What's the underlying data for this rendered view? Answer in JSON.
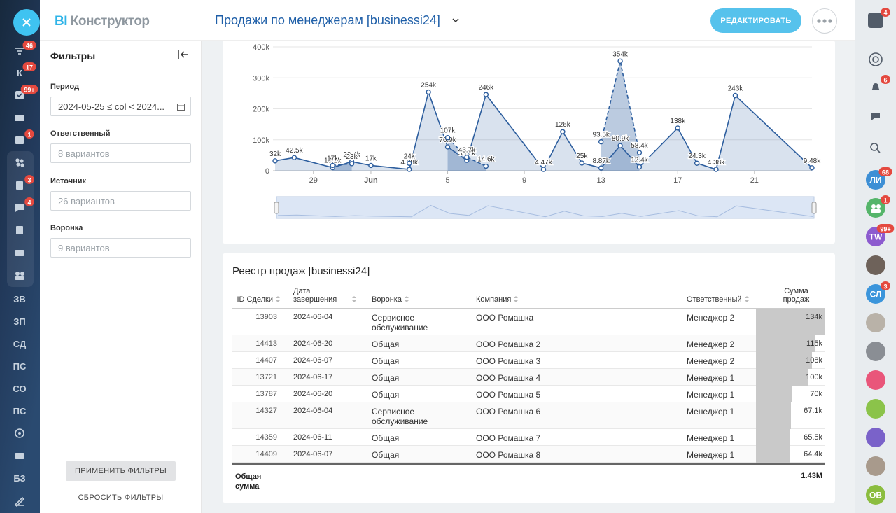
{
  "left_nav": {
    "badges": [
      "46",
      "17",
      "99+",
      "1",
      "3",
      "4"
    ],
    "labels": [
      "К",
      "ЗВ",
      "ЗП",
      "СД",
      "ПС",
      "СО",
      "ПС",
      "БЗ"
    ]
  },
  "header": {
    "brand_bi": "BI",
    "brand_name": "Конструктор",
    "title": "Продажи по менеджерам [businessi24]",
    "edit_button": "РЕДАКТИРОВАТЬ"
  },
  "filters": {
    "title": "Фильтры",
    "fields": [
      {
        "label": "Период",
        "value": "2024-05-25 ≤ col < 2024..."
      },
      {
        "label": "Ответственный",
        "value": "8 вариантов"
      },
      {
        "label": "Источник",
        "value": "26 вариантов"
      },
      {
        "label": "Воронка",
        "value": "9 вариантов"
      }
    ],
    "apply_button": "ПРИМЕНИТЬ ФИЛЬТРЫ",
    "reset_button": "СБРОСИТЬ ФИЛЬТРЫ"
  },
  "chart_data": {
    "type": "area",
    "xlim": [
      "2024-05-27",
      "2024-06-24"
    ],
    "xticks": [
      {
        "value": "2024-05-29",
        "label": "29"
      },
      {
        "value": "2024-06-01",
        "label": "Jun"
      },
      {
        "value": "2024-06-05",
        "label": "5"
      },
      {
        "value": "2024-06-09",
        "label": "9"
      },
      {
        "value": "2024-06-13",
        "label": "13"
      },
      {
        "value": "2024-06-17",
        "label": "17"
      },
      {
        "value": "2024-06-21",
        "label": "21"
      }
    ],
    "ylim": [
      0,
      400000
    ],
    "yticks": [
      {
        "value": 0,
        "label": "0"
      },
      {
        "value": 100000,
        "label": "100k"
      },
      {
        "value": 200000,
        "label": "200k"
      },
      {
        "value": 300000,
        "label": "300k"
      },
      {
        "value": 400000,
        "label": "400k"
      }
    ],
    "grid": true,
    "series": [
      {
        "color": "#2d5e9e",
        "dashed": false,
        "x": [
          "2024-05-27",
          "2024-05-28",
          "2024-05-30",
          "2024-05-31",
          "2024-06-01",
          "2024-06-03",
          "2024-06-04",
          "2024-06-05",
          "2024-06-06",
          "2024-06-07",
          "2024-06-10",
          "2024-06-11",
          "2024-06-12",
          "2024-06-13",
          "2024-06-14",
          "2024-06-15",
          "2024-06-17",
          "2024-06-18",
          "2024-06-19",
          "2024-06-20",
          "2024-06-24"
        ],
        "values": [
          32000,
          42500,
          10200,
          29400,
          17000,
          4380,
          254000,
          76900,
          33700,
          246000,
          4470,
          126000,
          25000,
          8870,
          80900,
          12400,
          138000,
          24300,
          4380,
          243000,
          9480
        ],
        "value_labels": [
          "32k",
          "42.5k",
          "10.2k",
          "29.4k",
          "17k",
          "4.38k",
          "254k",
          "76.9k",
          "33.7k",
          "246k",
          "4.47k",
          "126k",
          "25k",
          "8.87k",
          "80.9k",
          "12.4k",
          "138k",
          "24.3k",
          "4.38k",
          "243k",
          "9.48k"
        ]
      },
      {
        "color": "#2d5e9e",
        "dashed": true,
        "x": [
          "2024-05-30",
          "2024-05-31",
          "2024-06-01",
          "2024-06-03",
          "2024-06-04",
          "2024-06-05",
          "2024-06-06",
          "2024-06-07",
          "2024-06-10",
          "2024-06-13",
          "2024-06-14",
          "2024-06-15"
        ],
        "values": [
          17000,
          23000,
          null,
          24000,
          null,
          107000,
          43700,
          14600,
          null,
          93500,
          354000,
          58400
        ],
        "value_labels": [
          "17k",
          "23k",
          null,
          "24k",
          null,
          "107k",
          "43.7k",
          "14.6k",
          null,
          "93.5k",
          "354k",
          "58.4k"
        ]
      }
    ]
  },
  "table": {
    "title": "Реестр продаж [businessi24]",
    "columns": [
      "ID Сделки",
      "Дата завершения",
      "Воронка",
      "Компания",
      "Ответственный",
      "Сумма продаж"
    ],
    "rows": [
      [
        "13903",
        "2024-06-04",
        "Сервисное обслуживание",
        "ООО Ромашка",
        "Менеджер 2",
        {
          "value": 134000,
          "label": "134k"
        }
      ],
      [
        "14413",
        "2024-06-20",
        "Общая",
        "ООО Ромашка 2",
        "Менеджер 2",
        {
          "value": 115000,
          "label": "115k"
        }
      ],
      [
        "14407",
        "2024-06-07",
        "Общая",
        "ООО Ромашка 3",
        "Менеджер 2",
        {
          "value": 108000,
          "label": "108k"
        }
      ],
      [
        "13721",
        "2024-06-17",
        "Общая",
        "ООО Ромашка 4",
        "Менеджер 1",
        {
          "value": 100000,
          "label": "100k"
        }
      ],
      [
        "13787",
        "2024-06-20",
        "Общая",
        "ООО Ромашка 5",
        "Менеджер 1",
        {
          "value": 70000,
          "label": "70k"
        }
      ],
      [
        "14327",
        "2024-06-04",
        "Сервисное обслуживание",
        "ООО Ромашка 6",
        "Менеджер 1",
        {
          "value": 67100,
          "label": "67.1k"
        }
      ],
      [
        "14359",
        "2024-06-11",
        "Общая",
        "ООО Ромашка 7",
        "Менеджер 1",
        {
          "value": 65500,
          "label": "65.5k"
        }
      ],
      [
        "14409",
        "2024-06-07",
        "Общая",
        "ООО Ромашка 8",
        "Менеджер 1",
        {
          "value": 64400,
          "label": "64.4k"
        }
      ]
    ],
    "total_label": "Общая сумма",
    "total_value": "1.43M"
  },
  "right_nav": {
    "badges": [
      "4",
      "6",
      "68",
      "1",
      "99+",
      "3"
    ],
    "initials": [
      "ЛИ",
      "TW",
      "СЛ",
      "ОВ"
    ]
  }
}
